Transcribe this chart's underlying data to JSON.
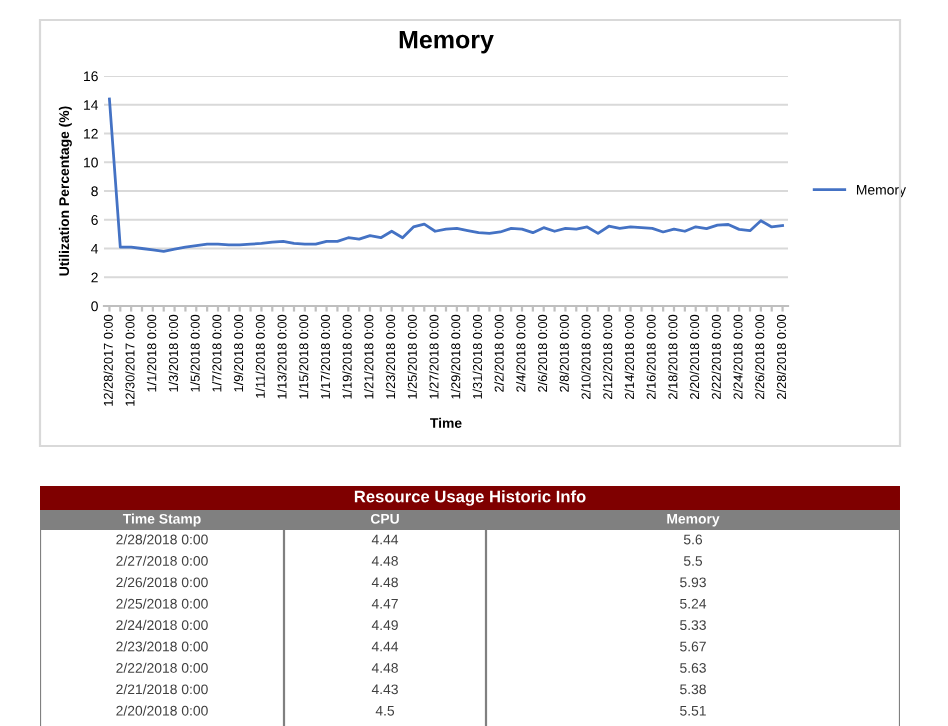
{
  "chart_data": [
    {
      "type": "line",
      "title": "Memory",
      "xlabel": "Time",
      "ylabel": "Utilization Percentage (%)",
      "categories": [
        "12/28/2017 0:00",
        null,
        "12/30/2017 0:00",
        null,
        "1/1/2018 0:00",
        null,
        "1/3/2018 0:00",
        null,
        "1/5/2018 0:00",
        null,
        "1/7/2018 0:00",
        null,
        "1/9/2018 0:00",
        null,
        "1/11/2018 0:00",
        null,
        "1/13/2018 0:00",
        null,
        "1/15/2018 0:00",
        null,
        "1/17/2018 0:00",
        null,
        "1/19/2018 0:00",
        null,
        "1/21/2018 0:00",
        null,
        "1/23/2018 0:00",
        null,
        "1/25/2018 0:00",
        null,
        "1/27/2018 0:00",
        null,
        "1/29/2018 0:00",
        null,
        "1/31/2018 0:00",
        null,
        "2/2/2018 0:00",
        null,
        "2/4/2018 0:00",
        null,
        "2/6/2018 0:00",
        null,
        "2/8/2018 0:00",
        null,
        "2/10/2018 0:00",
        null,
        "2/12/2018 0:00",
        null,
        "2/14/2018 0:00",
        null,
        "2/16/2018 0:00",
        null,
        "2/18/2018 0:00",
        null,
        "2/20/2018 0:00",
        null,
        "2/22/2018 0:00",
        null,
        "2/24/2018 0:00",
        null,
        "2/26/2018 0:00",
        null,
        "2/28/2018 0:00"
      ],
      "series": [
        {
          "name": "Memory",
          "color": "#4472c4",
          "values": [
            14.4,
            4.1,
            4.1,
            4.0,
            3.9,
            3.8,
            3.95,
            4.1,
            4.2,
            4.3,
            4.3,
            4.25,
            4.25,
            4.3,
            4.35,
            4.45,
            4.5,
            4.35,
            4.3,
            4.3,
            4.5,
            4.5,
            4.75,
            4.65,
            4.9,
            4.75,
            5.2,
            4.75,
            5.5,
            5.7,
            5.2,
            5.35,
            5.4,
            5.25,
            5.1,
            5.05,
            5.15,
            5.4,
            5.35,
            5.1,
            5.45,
            5.2,
            5.4,
            5.35,
            5.5,
            5.05,
            5.55,
            5.4,
            5.5,
            5.45,
            5.4,
            5.15,
            5.35,
            5.2,
            5.51,
            5.38,
            5.63,
            5.67,
            5.33,
            5.24,
            5.93,
            5.5,
            5.6
          ]
        }
      ],
      "ylim": [
        0,
        16
      ],
      "yticks": [
        0,
        2,
        4,
        6,
        8,
        10,
        12,
        14,
        16
      ],
      "grid": "y",
      "legend": "right",
      "marker": "none",
      "line_style": "solid"
    },
    {
      "type": "other",
      "title": "Resource Usage Historic Info",
      "xlabel": "Time Stamp",
      "categories": [
        "2/28/2018 0:00",
        "2/27/2018 0:00",
        "2/26/2018 0:00",
        "2/25/2018 0:00",
        "2/24/2018 0:00",
        "2/23/2018 0:00",
        "2/22/2018 0:00",
        "2/21/2018 0:00",
        "2/20/2018 0:00"
      ],
      "series": [
        {
          "name": "CPU",
          "values": [
            4.44,
            4.48,
            4.48,
            4.47,
            4.49,
            4.44,
            4.48,
            4.43,
            4.5
          ]
        },
        {
          "name": "Memory",
          "values": [
            5.6,
            5.5,
            5.93,
            5.24,
            5.33,
            5.67,
            5.63,
            5.38,
            5.51
          ]
        }
      ],
      "data_labels": true
    }
  ]
}
